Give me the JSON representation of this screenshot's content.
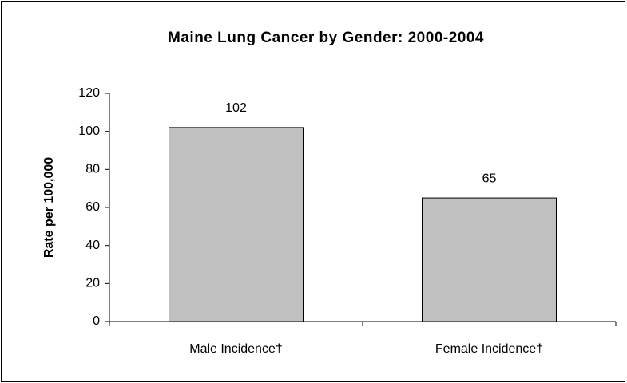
{
  "chart_data": {
    "type": "bar",
    "title": "Maine Lung Cancer by Gender: 2000-2004",
    "y_label": "Rate per 100,000",
    "categories": [
      "Male Incidence†",
      "Female Incidence†"
    ],
    "values": [
      102,
      65
    ],
    "color": "#c0c0c0",
    "ylim": [
      0,
      120
    ],
    "yticks": [
      0,
      20,
      40,
      60,
      80,
      100,
      120
    ],
    "grid": false
  }
}
